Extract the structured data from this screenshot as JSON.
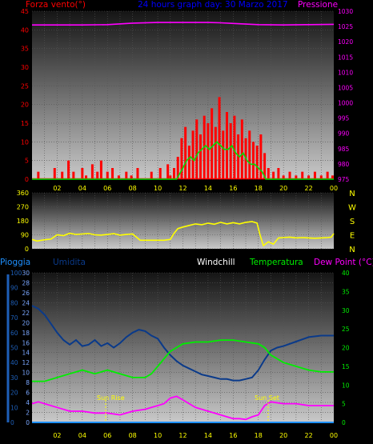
{
  "header": {
    "left_label": "Forza vento(°)",
    "title": "24 hours graph day: 30 Marzo 2017",
    "right_label": "Pressione"
  },
  "colors": {
    "wind": "#ff0000",
    "wind_line": "#ff3b3b",
    "gust": "#00dd00",
    "pressure": "#ff00ff",
    "direction": "#ffff00",
    "temperature": "#00ee00",
    "humidity": "#0a3a8a",
    "dewpoint": "#ff00ff",
    "rain": "#1e90ff",
    "left_axis": "#ff0000",
    "title": "#0000ff",
    "tick": "#ffff00"
  },
  "legend": {
    "pioggia": "Pioggia",
    "umidita": "Umidita",
    "windchill": "Windchill",
    "temperatura": "Temperatura",
    "dewpoint": "Dew Point (°C)"
  },
  "annotations": {
    "sunrise": "Sun Rise",
    "sunset": "Sun Set"
  },
  "compass": [
    "N",
    "W",
    "S",
    "E",
    "N"
  ],
  "chart_data": [
    {
      "type": "bar",
      "title": "24 hours graph day: 30 Marzo 2017",
      "ylabel": "Forza vento(°)",
      "y2label": "Pressione",
      "xticks": [
        "02",
        "04",
        "06",
        "08",
        "10",
        "12",
        "14",
        "16",
        "18",
        "20",
        "22",
        "00"
      ],
      "ylim": [
        0,
        45
      ],
      "yticks": [
        0,
        5,
        10,
        15,
        20,
        25,
        30,
        35,
        40,
        45
      ],
      "y2lim": [
        975,
        1030
      ],
      "y2ticks": [
        975,
        980,
        985,
        990,
        995,
        1000,
        1005,
        1010,
        1015,
        1020,
        1025,
        1030
      ],
      "wind_speed": {
        "x": [
          0.5,
          0.8,
          1.8,
          2.0,
          2.4,
          2.9,
          3.3,
          4.0,
          4.3,
          4.8,
          5.2,
          5.5,
          6.0,
          6.4,
          6.9,
          7.5,
          7.9,
          8.4,
          9.0,
          9.5,
          10.2,
          10.8,
          11.0,
          11.3,
          11.6,
          11.9,
          12.2,
          12.5,
          12.8,
          13.1,
          13.4,
          13.7,
          14.0,
          14.3,
          14.6,
          14.9,
          15.2,
          15.5,
          15.8,
          16.1,
          16.4,
          16.7,
          17.0,
          17.3,
          17.6,
          17.9,
          18.2,
          18.5,
          18.8,
          19.2,
          19.6,
          20.0,
          20.5,
          21.0,
          21.5,
          22.0,
          22.5,
          23.0,
          23.5,
          23.9
        ],
        "values": [
          2,
          0,
          3,
          0,
          2,
          5,
          2,
          3,
          1,
          4,
          2,
          5,
          2,
          3,
          1,
          2,
          1,
          3,
          0,
          2,
          3,
          4,
          1,
          3,
          6,
          11,
          14,
          9,
          13,
          16,
          12,
          17,
          15,
          19,
          14,
          22,
          13,
          18,
          15,
          17,
          12,
          16,
          11,
          13,
          10,
          9,
          12,
          7,
          3,
          2,
          3,
          1,
          2,
          1,
          2,
          1,
          2,
          1,
          2,
          1
        ]
      },
      "wind_gust": {
        "x": [
          0,
          10.8,
          11.5,
          12.0,
          12.3,
          12.6,
          12.9,
          13.2,
          13.5,
          13.8,
          14.1,
          14.4,
          14.7,
          15.0,
          15.3,
          15.6,
          15.9,
          16.2,
          16.5,
          16.8,
          17.1,
          17.4,
          17.7,
          18.0,
          18.3,
          18.6,
          19.0,
          24.0
        ],
        "values": [
          0,
          0,
          0,
          3,
          5,
          6,
          5,
          7,
          8,
          9,
          8,
          9,
          10,
          9,
          8,
          8,
          9,
          7,
          6,
          7,
          5,
          4,
          4,
          3,
          2,
          0,
          0,
          0
        ]
      },
      "pressure": {
        "x": [
          0,
          2,
          4,
          6,
          8,
          10,
          12,
          14,
          15,
          16,
          18,
          20,
          22,
          24
        ],
        "values": [
          1025.5,
          1025.5,
          1025.5,
          1025.6,
          1026.1,
          1026.3,
          1026.3,
          1026.3,
          1026.2,
          1026.0,
          1025.6,
          1025.5,
          1025.6,
          1025.7
        ]
      }
    },
    {
      "type": "line",
      "title": "",
      "ylim": [
        0,
        360
      ],
      "yticks": [
        0,
        90,
        180,
        270,
        360
      ],
      "x": [
        0,
        0.4,
        1.0,
        1.5,
        2.0,
        2.5,
        3.0,
        3.5,
        4.0,
        4.5,
        5.0,
        5.5,
        6.0,
        6.5,
        7.0,
        7.5,
        8.0,
        8.6,
        9.0,
        9.5,
        10.0,
        10.5,
        11.0,
        11.3,
        11.6,
        12.0,
        12.5,
        13.0,
        13.5,
        14.0,
        14.5,
        15.0,
        15.5,
        16.0,
        16.5,
        17.0,
        17.5,
        17.9,
        18.1,
        18.4,
        18.8,
        19.2,
        19.6,
        20.0,
        20.5,
        21.0,
        21.5,
        22.0,
        22.5,
        23.0,
        23.5,
        23.8,
        24.0
      ],
      "values": [
        60,
        50,
        58,
        62,
        90,
        85,
        100,
        92,
        95,
        98,
        90,
        88,
        92,
        97,
        88,
        92,
        95,
        55,
        55,
        55,
        55,
        55,
        60,
        100,
        130,
        140,
        150,
        160,
        155,
        165,
        158,
        170,
        160,
        168,
        160,
        170,
        175,
        165,
        100,
        20,
        45,
        30,
        70,
        72,
        75,
        70,
        72,
        70,
        68,
        70,
        72,
        75,
        98
      ]
    },
    {
      "type": "line",
      "title": "",
      "xticks": [
        "02",
        "04",
        "06",
        "08",
        "10",
        "12",
        "14",
        "16",
        "18",
        "20",
        "22",
        "00"
      ],
      "ylim_humidity": [
        0,
        100
      ],
      "yticks_humidity": [
        0,
        10,
        20,
        30,
        40,
        50,
        60,
        70,
        80,
        90,
        100
      ],
      "ylim_rain": [
        0,
        30
      ],
      "yticks_rain": [
        0,
        2,
        4,
        6,
        8,
        10,
        12,
        14,
        16,
        18,
        20,
        22,
        24,
        26,
        28,
        30
      ],
      "ylim_temp": [
        0,
        40
      ],
      "yticks_temp": [
        0,
        5,
        10,
        15,
        20,
        25,
        30,
        35,
        40
      ],
      "temperature": {
        "x": [
          0,
          1,
          2,
          3,
          4,
          5,
          6,
          7,
          8,
          9,
          9.5,
          10,
          10.5,
          11,
          11.5,
          12,
          13,
          14,
          15,
          16,
          17,
          18,
          18.5,
          19,
          20,
          21,
          22,
          23,
          24
        ],
        "values": [
          11,
          11,
          12,
          13,
          14,
          13,
          14,
          13,
          12,
          12,
          13,
          15,
          17,
          19,
          20,
          21,
          21.5,
          21.5,
          22,
          22,
          21.5,
          21,
          20,
          18,
          16,
          15,
          14,
          13.5,
          13.5
        ]
      },
      "humidity": {
        "x": [
          0,
          0.5,
          1,
          1.5,
          2,
          2.5,
          3,
          3.5,
          4,
          4.5,
          5,
          5.5,
          6,
          6.5,
          7,
          7.5,
          8,
          8.5,
          9,
          9.5,
          10,
          10.5,
          11,
          11.5,
          12,
          12.5,
          13,
          13.5,
          14,
          14.5,
          15,
          15.5,
          16,
          16.5,
          17,
          17.5,
          18,
          18.5,
          19,
          19.5,
          20,
          21,
          22,
          23,
          24
        ],
        "values": [
          78,
          76,
          72,
          66,
          60,
          55,
          52,
          55,
          51,
          52,
          55,
          51,
          53,
          50,
          53,
          57,
          60,
          62,
          61,
          58,
          56,
          50,
          45,
          41,
          38,
          36,
          34,
          32,
          31,
          30,
          29,
          29,
          28,
          28,
          29,
          30,
          35,
          42,
          48,
          50,
          51,
          54,
          57,
          58,
          58
        ]
      },
      "dewpoint": {
        "x": [
          0,
          0.5,
          1,
          2,
          3,
          4,
          5,
          6,
          7,
          8,
          9,
          9.5,
          10,
          10.5,
          11,
          11.5,
          12,
          12.5,
          13,
          13.5,
          14,
          14.5,
          15,
          15.5,
          16,
          16.5,
          17,
          17.5,
          18,
          18.5,
          19,
          20,
          21,
          22,
          23,
          24
        ],
        "values": [
          5,
          5.5,
          5,
          4,
          3,
          3,
          2.5,
          2.5,
          2,
          3,
          3.5,
          4,
          4.5,
          5,
          6.5,
          7,
          6,
          5,
          4,
          3.5,
          3,
          2.5,
          2,
          1.5,
          1,
          1,
          0.8,
          1.5,
          2,
          4.5,
          5.5,
          5,
          5,
          4.5,
          4.5,
          4.5
        ]
      },
      "rain": {
        "x": [
          0,
          24
        ],
        "values": [
          0,
          0
        ]
      }
    }
  ]
}
